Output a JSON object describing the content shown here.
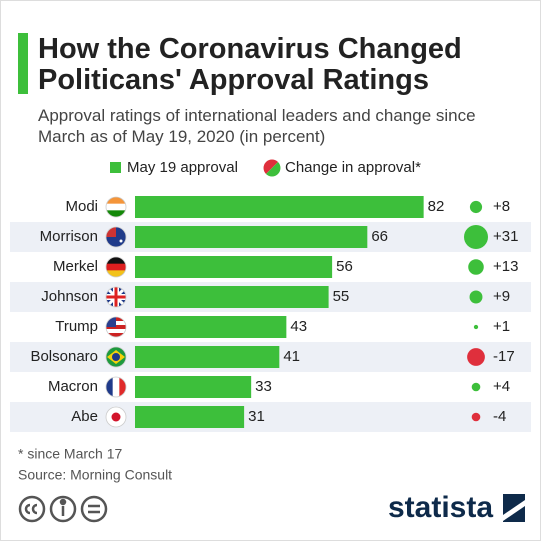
{
  "chart_data": {
    "type": "bar",
    "title": "How the Coronavirus Changed Politicans' Approval Ratings",
    "subtitle": "Approval ratings of international leaders and change since March as of May 19, 2020 (in percent)",
    "categories": [
      "Modi",
      "Morrison",
      "Merkel",
      "Johnson",
      "Trump",
      "Bolsonaro",
      "Macron",
      "Abe"
    ],
    "series": [
      {
        "name": "May 19 approval",
        "color": "#3dbf3b",
        "values": [
          82,
          66,
          56,
          55,
          43,
          41,
          33,
          31
        ]
      },
      {
        "name": "Change in approval*",
        "color": "#3dbf3b",
        "negative_color": "#df2f3c",
        "values": [
          8,
          31,
          13,
          9,
          1,
          -17,
          4,
          -4
        ],
        "value_labels": [
          "+8",
          "+31",
          "+13",
          "+9",
          "+1",
          "-17",
          "+4",
          "-4"
        ]
      }
    ],
    "footnote": "* since March 17",
    "source": "Source: Morning Consult",
    "logo": "statista"
  }
}
